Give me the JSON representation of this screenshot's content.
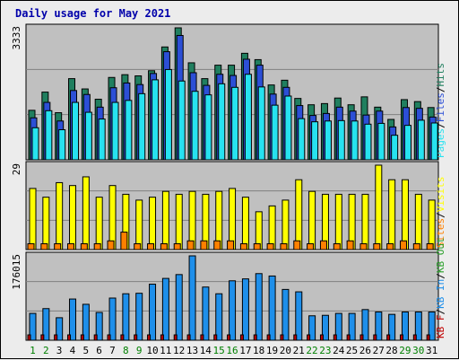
{
  "chart_data": {
    "type": "bar",
    "title": "Daily usage for May 2021",
    "categories": [
      "1",
      "2",
      "3",
      "4",
      "5",
      "6",
      "7",
      "8",
      "9",
      "10",
      "11",
      "12",
      "13",
      "14",
      "15",
      "16",
      "17",
      "18",
      "19",
      "20",
      "21",
      "22",
      "23",
      "24",
      "25",
      "26",
      "27",
      "28",
      "29",
      "30",
      "31"
    ],
    "weekend_days": [
      "1",
      "2",
      "8",
      "9",
      "15",
      "16",
      "22",
      "23",
      "29",
      "30"
    ],
    "colors": {
      "title": "#0000aa",
      "hits": "#207f5f",
      "files": "#2c4fd6",
      "pages": "#27e2f0",
      "visits": "#ffff00",
      "sites": "#ff8000",
      "kb_in": "#1e8fea",
      "kb_out": "#2aa02a",
      "kb_f": "#c00000",
      "weekday_label": "#000000",
      "weekend_label": "#008000"
    },
    "panels": [
      {
        "name": "hits-files-pages",
        "ymax_label": "3333",
        "ylim": [
          0,
          3333
        ],
        "legend": [
          {
            "text": "Pages",
            "color_key": "pages"
          },
          {
            "text": "/",
            "color_key": "separator"
          },
          {
            "text": "Files",
            "color_key": "files"
          },
          {
            "text": "/",
            "color_key": "separator"
          },
          {
            "text": "Hits",
            "color_key": "hits"
          }
        ],
        "series": [
          {
            "name": "Hits",
            "color_key": "hits",
            "values": [
              1250,
              1710,
              1190,
              2050,
              1790,
              1530,
              2080,
              2150,
              2120,
              2250,
              2850,
              3333,
              2450,
              2050,
              2390,
              2390,
              2690,
              2530,
              1890,
              2010,
              1550,
              1390,
              1420,
              1560,
              1390,
              1590,
              1330,
              1020,
              1520,
              1470,
              1320
            ]
          },
          {
            "name": "Files",
            "color_key": "files",
            "values": [
              1060,
              1450,
              980,
              1750,
              1650,
              1330,
              1820,
              1940,
              1900,
              2180,
              2730,
              3140,
              2200,
              1880,
              2160,
              2130,
              2540,
              2390,
              1660,
              1830,
              1370,
              1120,
              1170,
              1330,
              1230,
              1130,
              1230,
              830,
              1320,
              1300,
              1080
            ]
          },
          {
            "name": "Pages",
            "color_key": "pages",
            "values": [
              810,
              1240,
              760,
              1450,
              1200,
              1030,
              1450,
              1500,
              1670,
              2020,
              2280,
              1990,
              1730,
              1640,
              1920,
              1830,
              2160,
              1840,
              1380,
              1610,
              1040,
              960,
              980,
              990,
              980,
              900,
              920,
              620,
              870,
              1000,
              930
            ]
          }
        ]
      },
      {
        "name": "visits-sites",
        "ymax_label": "29",
        "ylim": [
          0,
          29
        ],
        "legend": [
          {
            "text": "Sites",
            "color_key": "sites"
          },
          {
            "text": "/",
            "color_key": "separator"
          },
          {
            "text": "Visits",
            "color_key": "visits"
          }
        ],
        "series": [
          {
            "name": "Visits",
            "color_key": "visits",
            "values": [
              21,
              18,
              23,
              22,
              25,
              18,
              22,
              19,
              17,
              18,
              20,
              19,
              20,
              19,
              20,
              21,
              18,
              13,
              15,
              17,
              24,
              20,
              19,
              19,
              19,
              19,
              29,
              24,
              24,
              19,
              17
            ]
          },
          {
            "name": "Sites",
            "color_key": "sites",
            "values": [
              2,
              2,
              2,
              2,
              2,
              2,
              3,
              6,
              2,
              2,
              2,
              2,
              3,
              3,
              3,
              3,
              2,
              2,
              2,
              2,
              3,
              2,
              3,
              2,
              3,
              2,
              2,
              2,
              3,
              2,
              2
            ]
          }
        ]
      },
      {
        "name": "kbytes",
        "ymax_label": "176015",
        "ylim": [
          0,
          176015
        ],
        "legend": [
          {
            "text": "KB F",
            "color_key": "kb_f"
          },
          {
            "text": "/",
            "color_key": "separator"
          },
          {
            "text": "KB In",
            "color_key": "kb_in"
          },
          {
            "text": "/",
            "color_key": "separator"
          },
          {
            "text": "KB Out",
            "color_key": "kb_out"
          }
        ],
        "series": [
          {
            "name": "KB In",
            "color_key": "kb_in",
            "values": [
              56000,
              66000,
              47000,
              86000,
              75000,
              58000,
              88000,
              97000,
              98000,
              117000,
              129000,
              137000,
              176015,
              111000,
              97000,
              124000,
              128000,
              139000,
              134000,
              106000,
              101000,
              51000,
              52000,
              56000,
              56000,
              64000,
              59000,
              54000,
              59000,
              59000,
              59000
            ]
          },
          {
            "name": "KB F",
            "color_key": "kb_f",
            "values": [
              1200,
              1200,
              1200,
              1200,
              1200,
              1200,
              1200,
              1200,
              1200,
              1200,
              1200,
              1200,
              1200,
              1200,
              1200,
              1200,
              1200,
              1200,
              1200,
              1200,
              1200,
              1200,
              1200,
              1200,
              1200,
              1200,
              1200,
              1200,
              1200,
              1200,
              1200
            ]
          }
        ]
      }
    ]
  }
}
